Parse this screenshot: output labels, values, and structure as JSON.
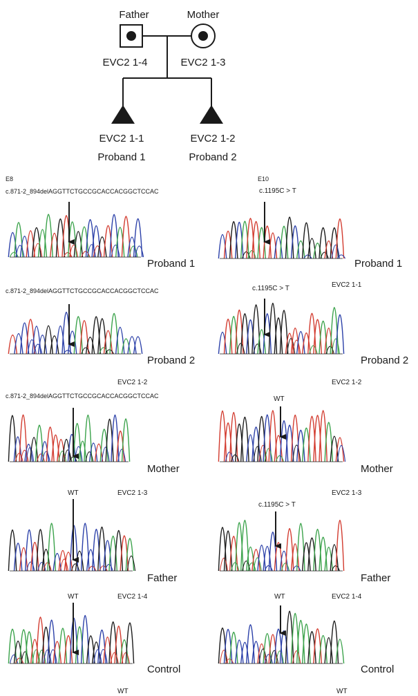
{
  "pedigree": {
    "father": {
      "role": "Father",
      "id": "EVC2 1-4"
    },
    "mother": {
      "role": "Mother",
      "id": "EVC2 1-3"
    },
    "children": [
      {
        "id": "EVC2 1-1",
        "label": "Proband 1"
      },
      {
        "id": "EVC2 1-2",
        "label": "Proband 2"
      }
    ]
  },
  "left_panel": {
    "exon": "E8",
    "mutation": "c.871-2_894delAGGTTCTGCCGCACCACGGCTCCAC",
    "rows": [
      {
        "header": "c.871-2_894delAGGTTCTGCCGCACCACGGCTCCAC",
        "subject": "Proband 1",
        "footer": ""
      },
      {
        "header": "c.871-2_894delAGGTTCTGCCGCACCACGGCTCCAC",
        "subject": "Proband 2",
        "footer": "EVC2 1-2"
      },
      {
        "header": "",
        "subject": "Mother",
        "footer": "EVC2 1-3",
        "wt": "WT"
      },
      {
        "header": "",
        "subject": "Father",
        "footer": "EVC2 1-4",
        "wt": "WT"
      },
      {
        "header": "",
        "subject": "Control",
        "footer": "",
        "wt": "WT"
      }
    ]
  },
  "right_panel": {
    "exon": "E10",
    "rows": [
      {
        "header": "c.1195C > T",
        "subject": "Proband 1",
        "footer": "EVC2 1-1"
      },
      {
        "header": "c.1195C > T",
        "subject": "Proband 2",
        "footer": "EVC2 1-2"
      },
      {
        "header": "WT",
        "subject": "Mother",
        "footer": "EVC2 1-3"
      },
      {
        "header": "c.1195C > T",
        "subject": "Father",
        "footer": "EVC2 1-4",
        "wt": "WT"
      },
      {
        "header": "",
        "subject": "Control",
        "footer": "",
        "wt": "WT"
      }
    ]
  },
  "colors": {
    "black": "#1a1a1a",
    "red": "#d23a2e",
    "blue": "#2a3fa8",
    "green": "#3aa24a"
  }
}
